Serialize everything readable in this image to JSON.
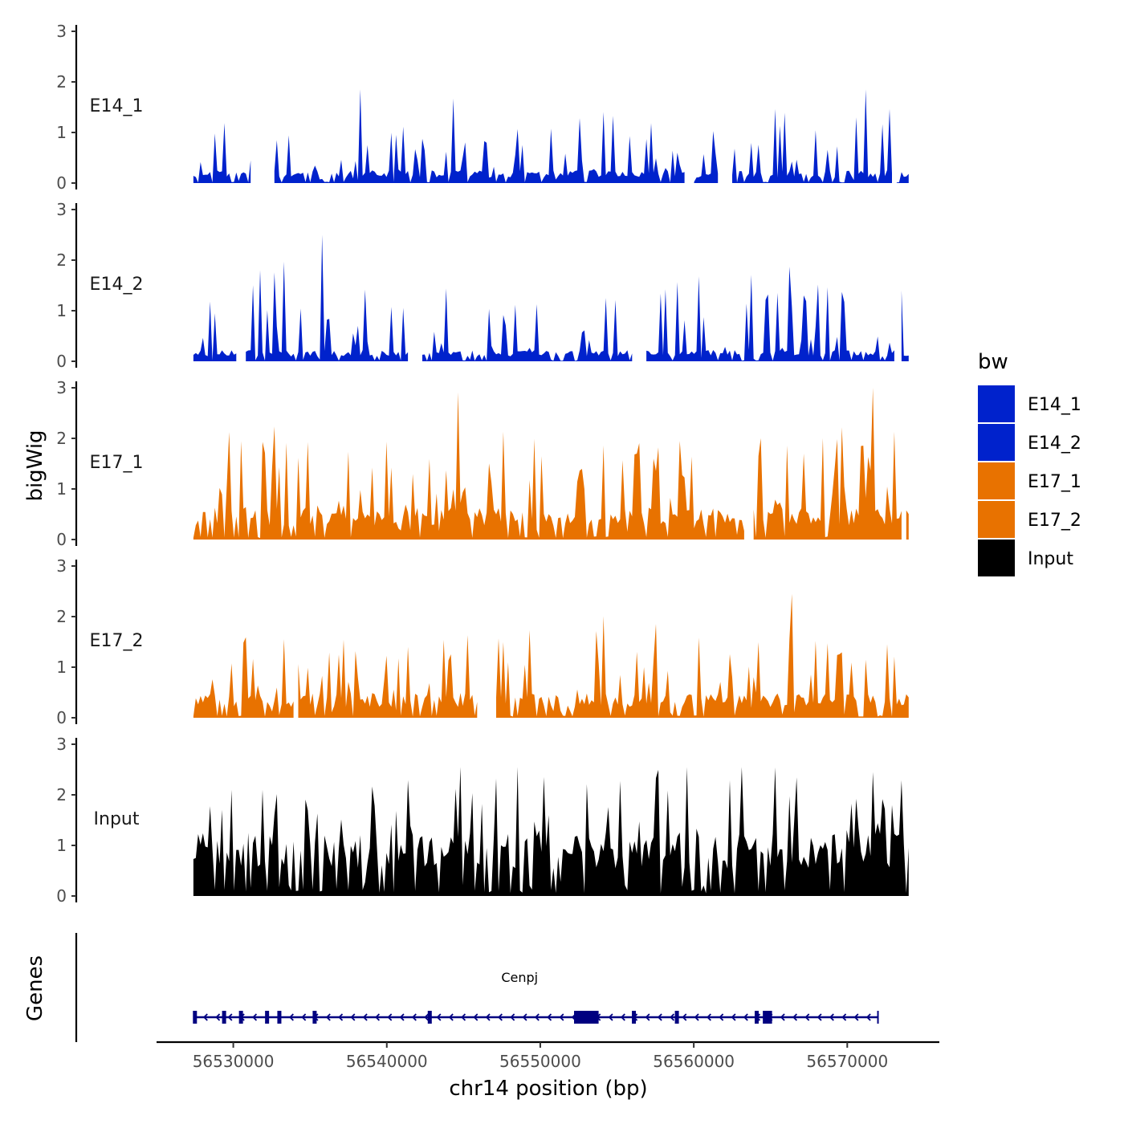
{
  "chart_data": {
    "type": "area",
    "title": "",
    "ylabel": "bigWig",
    "xlabel": "chr14 position (bp)",
    "genes_label": "Genes",
    "ylim": [
      0,
      3
    ],
    "yticks": [
      "0",
      "1",
      "2",
      "3"
    ],
    "xlim": [
      56525000,
      56576000
    ],
    "xticks": [
      {
        "value": 56530000,
        "label": "56530000"
      },
      {
        "value": 56540000,
        "label": "56540000"
      },
      {
        "value": 56550000,
        "label": "56550000"
      },
      {
        "value": 56560000,
        "label": "56560000"
      },
      {
        "value": 56570000,
        "label": "56570000"
      }
    ],
    "data_range": [
      56527400,
      56574000
    ],
    "series": [
      {
        "name": "E14_1",
        "color": "#0022CC",
        "seed": 11,
        "base": 0.18,
        "peak": 1.85,
        "noise": 0.55,
        "gaps": [
          [
            56531200,
            56532600
          ],
          [
            56559500,
            56560000
          ],
          [
            56561700,
            56562400
          ],
          [
            56573000,
            56573200
          ]
        ]
      },
      {
        "name": "E14_2",
        "color": "#0022CC",
        "seed": 23,
        "base": 0.16,
        "peak": 2.5,
        "noise": 0.55,
        "gaps": [
          [
            56530300,
            56530700
          ],
          [
            56541500,
            56542200
          ],
          [
            56556000,
            56556800
          ],
          [
            56573200,
            56573500
          ]
        ]
      },
      {
        "name": "E17_1",
        "color": "#E87200",
        "seed": 37,
        "base": 0.45,
        "peak": 3.0,
        "noise": 0.7,
        "gaps": [
          [
            56563400,
            56563900
          ],
          [
            56573600,
            56573700
          ]
        ]
      },
      {
        "name": "E17_2",
        "color": "#E87200",
        "seed": 53,
        "base": 0.35,
        "peak": 2.45,
        "noise": 0.65,
        "gaps": [
          [
            56534000,
            56534200
          ],
          [
            56546000,
            56547000
          ]
        ]
      },
      {
        "name": "Input",
        "color": "#000000",
        "seed": 71,
        "base": 0.9,
        "peak": 2.55,
        "noise": 0.6,
        "gaps": []
      }
    ],
    "legend": {
      "title": "bw",
      "entries": [
        {
          "label": "E14_1",
          "color": "#0022CC"
        },
        {
          "label": "E14_2",
          "color": "#0022CC"
        },
        {
          "label": "E17_1",
          "color": "#E87200"
        },
        {
          "label": "E17_2",
          "color": "#E87200"
        },
        {
          "label": "Input",
          "color": "#000000"
        }
      ]
    },
    "gene": {
      "name": "Cenpj",
      "start": 56527400,
      "end": 56572000,
      "strand": "-",
      "color": "#000080",
      "exons": [
        56527500,
        56529400,
        56530500,
        56532200,
        56533000,
        56535300,
        56542800,
        56556100,
        56558900,
        56564100
      ],
      "big_exons": [
        [
          56552200,
          56553800
        ],
        [
          56564500,
          56565100
        ]
      ]
    }
  }
}
